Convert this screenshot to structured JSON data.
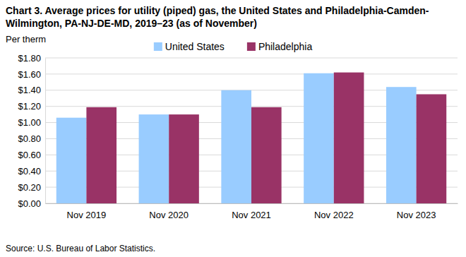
{
  "chart_data": {
    "type": "bar",
    "title": "Chart 3. Average prices for utility (piped) gas, the United States and Philadelphia-Camden-Wilmington, PA-NJ-DE-MD, 2019–23 (as of November)",
    "ylabel": "Per therm",
    "source": "Source: U.S. Bureau of Labor Statistics.",
    "categories": [
      "Nov 2019",
      "Nov 2020",
      "Nov 2021",
      "Nov 2022",
      "Nov 2023"
    ],
    "series": [
      {
        "name": "United States",
        "color": "#99ccff",
        "values": [
          1.06,
          1.1,
          1.4,
          1.61,
          1.44
        ]
      },
      {
        "name": "Philadelphia",
        "color": "#993366",
        "values": [
          1.19,
          1.1,
          1.19,
          1.62,
          1.35
        ]
      }
    ],
    "ylim": [
      0,
      1.8
    ],
    "yticks": [
      {
        "value": 0,
        "label": "$0.00"
      },
      {
        "value": 0.2,
        "label": "$0.20"
      },
      {
        "value": 0.4,
        "label": "$0.40"
      },
      {
        "value": 0.6,
        "label": "$0.60"
      },
      {
        "value": 0.8,
        "label": "$0.80"
      },
      {
        "value": 1.0,
        "label": "$1.00"
      },
      {
        "value": 1.2,
        "label": "$1.20"
      },
      {
        "value": 1.4,
        "label": "$1.40"
      },
      {
        "value": 1.6,
        "label": "$1.60"
      },
      {
        "value": 1.8,
        "label": "$1.80"
      }
    ],
    "grid": true,
    "legend": "top"
  }
}
